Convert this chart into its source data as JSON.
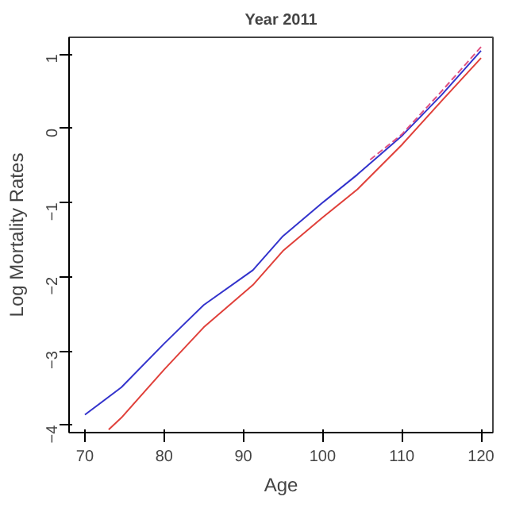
{
  "chart_data": {
    "type": "line",
    "title": "Year 2011",
    "xlabel": "Age",
    "ylabel": "Log Mortality Rates",
    "xlim": [
      68,
      121.5
    ],
    "ylim": [
      -4.1,
      1.23
    ],
    "xticks": [
      70,
      80,
      90,
      100,
      110,
      120
    ],
    "yticks": [
      -4,
      -3,
      -2,
      -1,
      0,
      1
    ],
    "grid": false,
    "series": [
      {
        "color": "#3333cc",
        "x": [
          70,
          74.6,
          80,
          85,
          91.2,
          95,
          100,
          104.4,
          110,
          115,
          120
        ],
        "values": [
          -3.86,
          -3.49,
          -2.9,
          -2.38,
          -1.91,
          -1.45,
          -1.0,
          -0.62,
          -0.1,
          0.45,
          1.05
        ]
      },
      {
        "color": "#e0403a",
        "x": [
          73,
          74.6,
          80,
          85,
          91.2,
          95,
          100,
          104.4,
          110,
          115,
          120
        ],
        "values": [
          -4.06,
          -3.9,
          -3.25,
          -2.68,
          -2.11,
          -1.65,
          -1.2,
          -0.82,
          -0.22,
          0.37,
          0.95
        ]
      },
      {
        "color": "#e05080",
        "line_style": "dashed",
        "x": [
          106,
          110,
          115,
          120
        ],
        "values": [
          -0.42,
          -0.08,
          0.5,
          1.1
        ]
      }
    ]
  }
}
